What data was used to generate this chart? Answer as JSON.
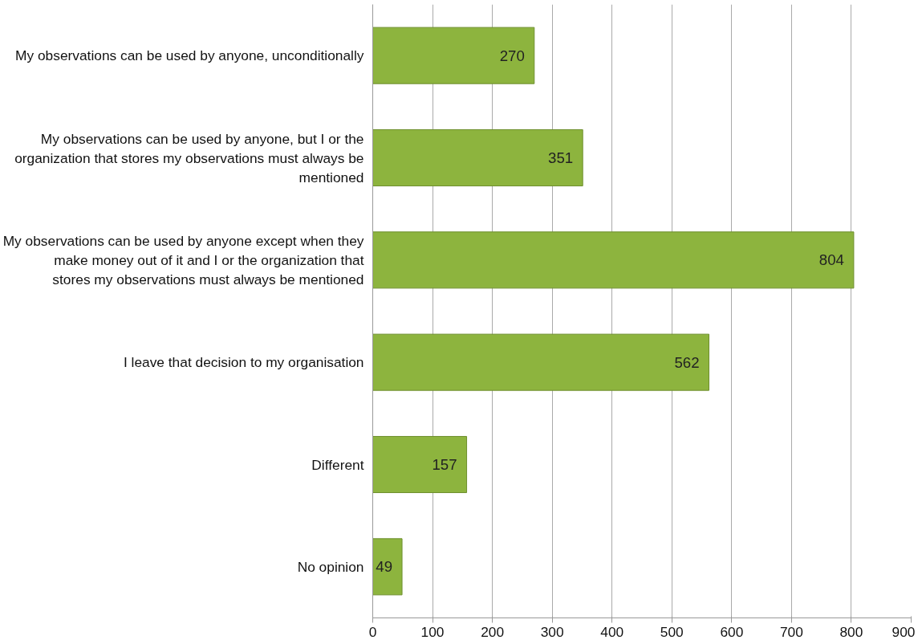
{
  "chart_data": {
    "type": "bar",
    "orientation": "horizontal",
    "categories": [
      "My observations can be used by anyone, unconditionally",
      "My observations can be used by anyone, but I or the organization that stores my observations must always be mentioned",
      "My observations can be used by anyone except when they make money out of it and I or the organization that stores my observations must always be mentioned",
      "I leave that decision to my organisation",
      "Different",
      "No opinion"
    ],
    "values": [
      270,
      351,
      804,
      562,
      157,
      49
    ],
    "color": "#8db43e",
    "data_labels": true,
    "grid": "x",
    "xlim": [
      0,
      900
    ],
    "xticks": [
      0,
      100,
      200,
      300,
      400,
      500,
      600,
      700,
      800,
      900
    ]
  }
}
